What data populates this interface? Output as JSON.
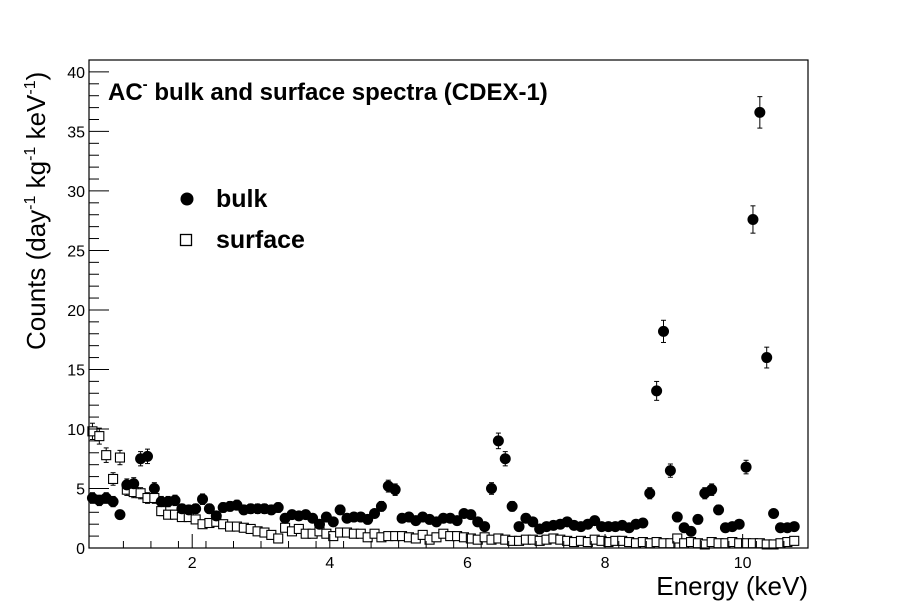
{
  "chart_data": {
    "type": "scatter",
    "title": "AC- bulk and surface spectra (CDEX-1)",
    "title_parts": {
      "base": "AC",
      "sup": "-",
      "rest": " bulk and surface spectra (CDEX-1)"
    },
    "xlabel": "Energy (keV)",
    "ylabel": "Counts (day-1 kg-1 keV-1)",
    "ylabel_parts": {
      "t1": "Counts (day",
      "s1": "-1",
      "t2": " kg",
      "s2": "-1",
      "t3": " keV",
      "s3": "-1",
      "t4": ")"
    },
    "xlim": [
      0.5,
      10.95
    ],
    "ylim": [
      0,
      41
    ],
    "x_ticks": [
      2,
      4,
      6,
      8,
      10
    ],
    "y_ticks": [
      0,
      5,
      10,
      15,
      20,
      25,
      30,
      35,
      40
    ],
    "grid": false,
    "legend_position": "upper-left",
    "series": [
      {
        "name": "bulk",
        "marker": "filled-circle",
        "color": "#000000",
        "x": [
          0.55,
          0.65,
          0.75,
          0.85,
          0.95,
          1.05,
          1.15,
          1.25,
          1.35,
          1.45,
          1.55,
          1.65,
          1.75,
          1.85,
          1.95,
          2.05,
          2.15,
          2.25,
          2.35,
          2.45,
          2.55,
          2.65,
          2.75,
          2.85,
          2.95,
          3.05,
          3.15,
          3.25,
          3.35,
          3.45,
          3.55,
          3.65,
          3.75,
          3.85,
          3.95,
          4.05,
          4.15,
          4.25,
          4.35,
          4.45,
          4.55,
          4.65,
          4.75,
          4.85,
          4.95,
          5.05,
          5.15,
          5.25,
          5.35,
          5.45,
          5.55,
          5.65,
          5.75,
          5.85,
          5.95,
          6.05,
          6.15,
          6.25,
          6.35,
          6.45,
          6.55,
          6.65,
          6.75,
          6.85,
          6.95,
          7.05,
          7.15,
          7.25,
          7.35,
          7.45,
          7.55,
          7.65,
          7.75,
          7.85,
          7.95,
          8.05,
          8.15,
          8.25,
          8.35,
          8.45,
          8.55,
          8.65,
          8.75,
          8.85,
          8.95,
          9.05,
          9.15,
          9.25,
          9.35,
          9.45,
          9.55,
          9.65,
          9.75,
          9.85,
          9.95,
          10.05,
          10.15,
          10.25,
          10.35,
          10.45,
          10.55,
          10.65,
          10.75
        ],
        "y": [
          4.2,
          4.0,
          4.2,
          3.9,
          2.8,
          5.3,
          5.4,
          7.5,
          7.7,
          5.0,
          3.9,
          3.9,
          4.0,
          3.3,
          3.2,
          3.3,
          4.1,
          3.3,
          2.7,
          3.4,
          3.5,
          3.6,
          3.2,
          3.3,
          3.3,
          3.3,
          3.2,
          3.4,
          2.5,
          2.8,
          2.7,
          2.8,
          2.5,
          2.0,
          2.6,
          2.2,
          3.2,
          2.5,
          2.6,
          2.6,
          2.4,
          2.9,
          3.5,
          5.2,
          4.9,
          2.5,
          2.6,
          2.3,
          2.6,
          2.4,
          2.2,
          2.5,
          2.5,
          2.3,
          2.9,
          2.8,
          2.2,
          1.8,
          5.0,
          9.0,
          7.5,
          3.5,
          1.8,
          2.5,
          2.2,
          1.6,
          1.8,
          1.9,
          2.0,
          2.2,
          1.9,
          1.8,
          2.0,
          2.3,
          1.8,
          1.8,
          1.8,
          1.9,
          1.7,
          2.0,
          2.1,
          4.6,
          13.2,
          18.2,
          6.5,
          2.6,
          1.7,
          1.4,
          2.4,
          4.6,
          4.9,
          3.2,
          1.7,
          1.8,
          2.0,
          6.8,
          27.6,
          36.6,
          16.0,
          2.9,
          1.7,
          1.7,
          1.8
        ]
      },
      {
        "name": "surface",
        "marker": "open-square",
        "color": "#000000",
        "x": [
          0.55,
          0.65,
          0.75,
          0.85,
          0.95,
          1.05,
          1.15,
          1.25,
          1.35,
          1.45,
          1.55,
          1.65,
          1.75,
          1.85,
          1.95,
          2.05,
          2.15,
          2.25,
          2.35,
          2.45,
          2.55,
          2.65,
          2.75,
          2.85,
          2.95,
          3.05,
          3.15,
          3.25,
          3.35,
          3.45,
          3.55,
          3.65,
          3.75,
          3.85,
          3.95,
          4.05,
          4.15,
          4.25,
          4.35,
          4.45,
          4.55,
          4.65,
          4.75,
          4.85,
          4.95,
          5.05,
          5.15,
          5.25,
          5.35,
          5.45,
          5.55,
          5.65,
          5.75,
          5.85,
          5.95,
          6.05,
          6.15,
          6.25,
          6.35,
          6.45,
          6.55,
          6.65,
          6.75,
          6.85,
          6.95,
          7.05,
          7.15,
          7.25,
          7.35,
          7.45,
          7.55,
          7.65,
          7.75,
          7.85,
          7.95,
          8.05,
          8.15,
          8.25,
          8.35,
          8.45,
          8.55,
          8.65,
          8.75,
          8.85,
          8.95,
          9.05,
          9.15,
          9.25,
          9.35,
          9.45,
          9.55,
          9.65,
          9.75,
          9.85,
          9.95,
          10.05,
          10.15,
          10.25,
          10.35,
          10.45,
          10.55,
          10.65,
          10.75
        ],
        "y": [
          9.8,
          9.4,
          7.8,
          5.8,
          7.6,
          4.9,
          4.7,
          4.6,
          4.2,
          4.2,
          3.1,
          2.8,
          2.8,
          2.6,
          2.6,
          2.4,
          2.0,
          2.1,
          2.2,
          2.0,
          1.8,
          1.8,
          1.7,
          1.6,
          1.4,
          1.3,
          1.1,
          0.8,
          1.7,
          1.4,
          1.6,
          1.2,
          1.2,
          1.4,
          1.2,
          1.0,
          1.3,
          1.3,
          1.2,
          1.2,
          0.9,
          1.2,
          0.9,
          1.0,
          1.0,
          1.0,
          0.9,
          0.8,
          1.1,
          0.7,
          0.9,
          1.2,
          1.0,
          1.0,
          0.9,
          0.8,
          0.7,
          0.9,
          0.7,
          0.8,
          0.7,
          0.6,
          0.6,
          0.7,
          0.7,
          0.6,
          0.7,
          0.8,
          0.7,
          0.6,
          0.5,
          0.6,
          0.5,
          0.7,
          0.6,
          0.5,
          0.6,
          0.6,
          0.5,
          0.4,
          0.5,
          0.4,
          0.5,
          0.4,
          0.4,
          0.8,
          0.4,
          0.5,
          0.4,
          0.3,
          0.5,
          0.4,
          0.4,
          0.5,
          0.4,
          0.4,
          0.4,
          0.4,
          0.3,
          0.3,
          0.4,
          0.5,
          0.6
        ]
      }
    ]
  }
}
